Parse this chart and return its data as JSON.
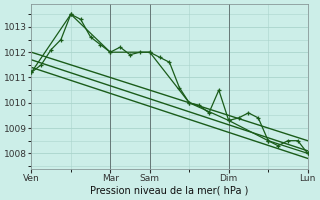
{
  "bg_color": "#cceee8",
  "grid_color": "#aad4cc",
  "line_color": "#1a5c1a",
  "xlabel": "Pression niveau de la mer( hPa )",
  "ylim": [
    1007.4,
    1013.9
  ],
  "yticks": [
    1008,
    1009,
    1010,
    1011,
    1012,
    1013
  ],
  "xtick_labels": [
    "Ven",
    "Mar",
    "Sam",
    "Dim",
    "Lun"
  ],
  "xtick_positions": [
    0,
    48,
    72,
    120,
    168
  ],
  "vline_positions": [
    48,
    72,
    120,
    168
  ],
  "series1_x": [
    0,
    6,
    12,
    18,
    24,
    30,
    36,
    42,
    48,
    54,
    60,
    66,
    72,
    78,
    84,
    90,
    96,
    102,
    108,
    114,
    120,
    126,
    132,
    138,
    144,
    150,
    156,
    162,
    168
  ],
  "series1_y": [
    1011.2,
    1011.5,
    1012.1,
    1012.5,
    1013.5,
    1013.3,
    1012.6,
    1012.3,
    1012.0,
    1012.2,
    1011.9,
    1012.0,
    1012.0,
    1011.8,
    1011.6,
    1010.6,
    1010.0,
    1009.9,
    1009.6,
    1010.5,
    1009.3,
    1009.4,
    1009.6,
    1009.4,
    1008.5,
    1008.3,
    1008.5,
    1008.5,
    1008.0
  ],
  "trend1_x": [
    0,
    168
  ],
  "trend1_y": [
    1012.0,
    1008.5
  ],
  "trend2_x": [
    0,
    168
  ],
  "trend2_y": [
    1011.7,
    1008.1
  ],
  "trend3_x": [
    0,
    168
  ],
  "trend3_y": [
    1011.4,
    1007.8
  ],
  "series2_x": [
    0,
    24,
    48,
    72,
    96,
    120,
    144,
    168
  ],
  "series2_y": [
    1011.2,
    1013.5,
    1012.0,
    1012.0,
    1010.0,
    1009.3,
    1008.5,
    1008.0
  ]
}
